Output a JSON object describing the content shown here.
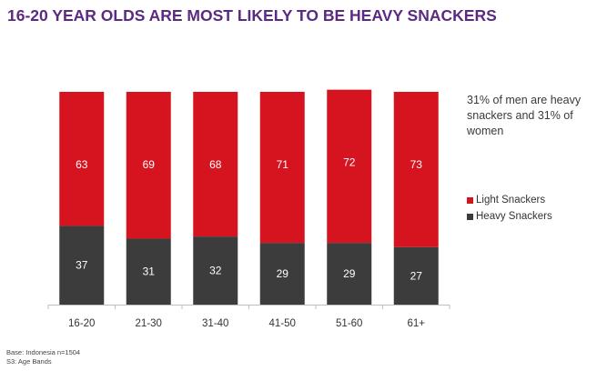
{
  "title": "16-20 YEAR OLDS ARE MOST LIKELY TO BE HEAVY SNACKERS",
  "note": "31% of men are heavy snackers and 31% of women",
  "footer": {
    "base": "Base: Indonesia n=1504",
    "question": "S3: Age Bands"
  },
  "colors": {
    "light": "#d6141f",
    "heavy": "#3c3c3c",
    "title": "#5b2a82"
  },
  "chart_data": {
    "type": "bar",
    "stacked": true,
    "categories": [
      "16-20",
      "21-30",
      "31-40",
      "41-50",
      "51-60",
      "61+"
    ],
    "series": [
      {
        "name": "Heavy Snackers",
        "values": [
          37,
          31,
          32,
          29,
          29,
          27
        ]
      },
      {
        "name": "Light Snackers",
        "values": [
          63,
          69,
          68,
          71,
          72,
          73
        ]
      }
    ],
    "ylim": [
      0,
      100
    ],
    "grid": false,
    "legend": {
      "position": "right",
      "entries": [
        "Light Snackers",
        "Heavy Snackers"
      ]
    }
  }
}
